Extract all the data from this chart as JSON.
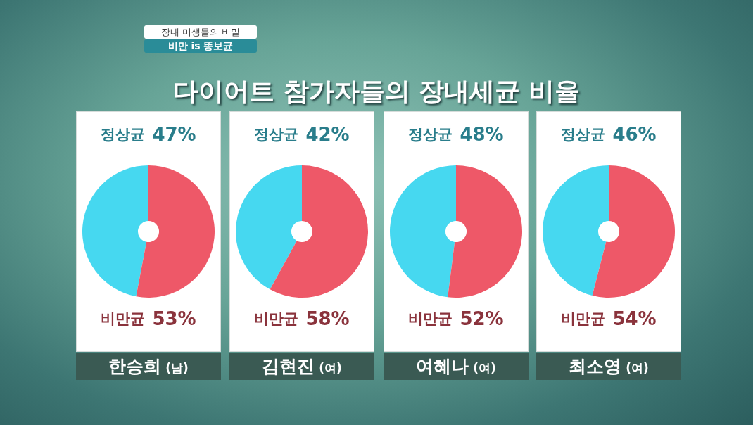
{
  "chart_data": [
    {
      "type": "donut",
      "title": "다이어트 참가자들의 장내세균 비율",
      "annotations": [
        "장내 미생물의 비밀",
        "비만 is 똥보균"
      ],
      "xlabel": "한승희 (남)",
      "categories": [
        "정상균",
        "비만균"
      ],
      "values": [
        47,
        53
      ],
      "value_labels": [
        "47%",
        "53%"
      ],
      "colors": [
        "#46d8f0",
        "#ee5868"
      ]
    },
    {
      "type": "donut",
      "xlabel": "김현진 (여)",
      "categories": [
        "정상균",
        "비만균"
      ],
      "values": [
        42,
        58
      ],
      "value_labels": [
        "42%",
        "58%"
      ],
      "colors": [
        "#46d8f0",
        "#ee5868"
      ]
    },
    {
      "type": "donut",
      "xlabel": "여혜나 (여)",
      "categories": [
        "정상균",
        "비만균"
      ],
      "values": [
        48,
        52
      ],
      "value_labels": [
        "48%",
        "52%"
      ],
      "colors": [
        "#46d8f0",
        "#ee5868"
      ]
    },
    {
      "type": "donut",
      "xlabel": "최소영 (여)",
      "categories": [
        "정상균",
        "비만균"
      ],
      "values": [
        46,
        54
      ],
      "value_labels": [
        "46%",
        "54%"
      ],
      "colors": [
        "#46d8f0",
        "#ee5868"
      ]
    }
  ]
}
